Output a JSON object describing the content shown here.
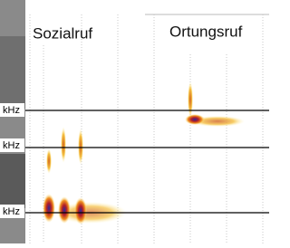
{
  "panel": {
    "left_label": "Sozialruf",
    "right_label": "Ortungsruf",
    "axis_labels": [
      "kHz",
      "kHz",
      "kHz"
    ]
  }
}
